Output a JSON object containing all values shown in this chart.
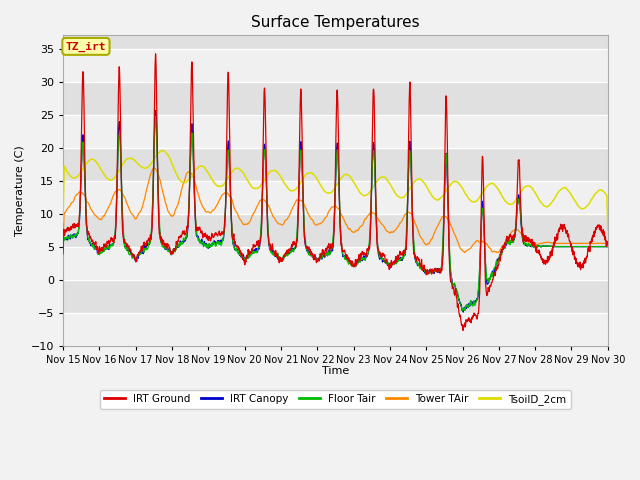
{
  "title": "Surface Temperatures",
  "xlabel": "Time",
  "ylabel": "Temperature (C)",
  "ylim": [
    -10,
    37
  ],
  "yticks": [
    -10,
    -5,
    0,
    5,
    10,
    15,
    20,
    25,
    30,
    35
  ],
  "xtick_labels": [
    "Nov 15",
    "Nov 16",
    "Nov 17",
    "Nov 18",
    "Nov 19",
    "Nov 20",
    "Nov 21",
    "Nov 22",
    "Nov 23",
    "Nov 24",
    "Nov 25",
    "Nov 26",
    "Nov 27",
    "Nov 28",
    "Nov 29",
    "Nov 30"
  ],
  "legend_entries": [
    "IRT Ground",
    "IRT Canopy",
    "Floor Tair",
    "Tower TAir",
    "TsoilD_2cm"
  ],
  "legend_colors": [
    "#dd0000",
    "#0000cc",
    "#00bb00",
    "#ff8800",
    "#dddd00"
  ],
  "annotation_text": "TZ_irt",
  "background_color": "#f0f0f0",
  "plot_bg_color_light": "#f0f0f0",
  "plot_bg_color_dark": "#e0e0e0",
  "seed": 42
}
